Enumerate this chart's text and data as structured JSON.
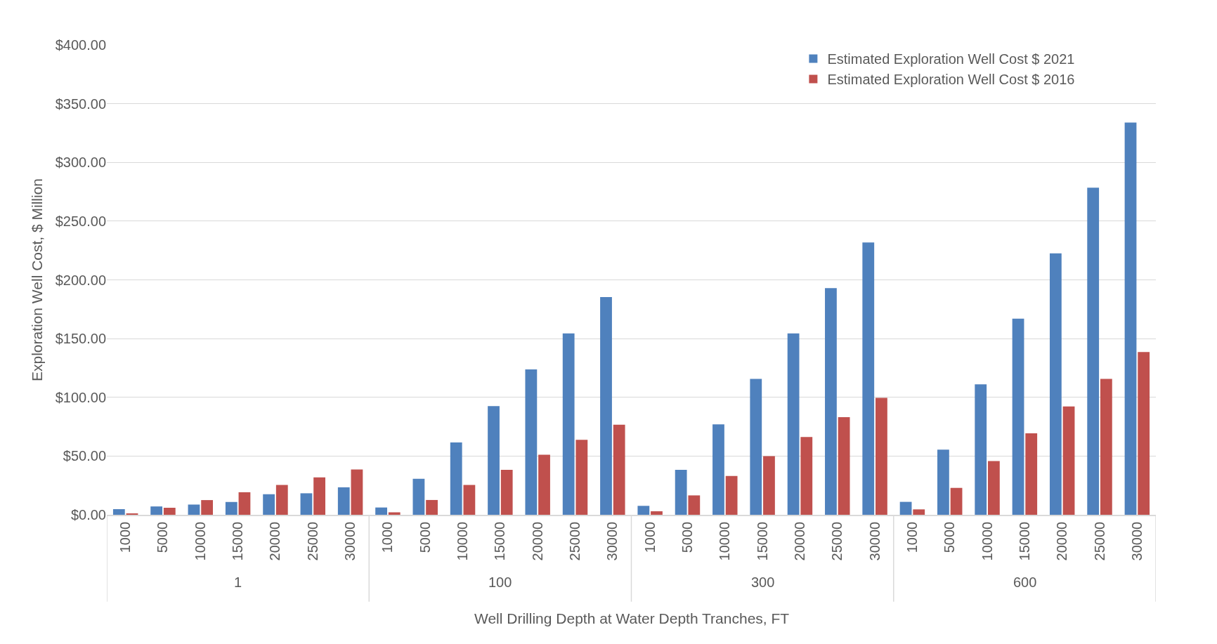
{
  "chart_data": {
    "type": "bar",
    "xlabel": "Well Drilling Depth at Water Depth Tranches, FT",
    "ylabel": "Exploration Well Cost, $ Million",
    "categories": [
      "1000",
      "5000",
      "10000",
      "15000",
      "20000",
      "25000",
      "30000",
      "1000",
      "5000",
      "10000",
      "15000",
      "20000",
      "25000",
      "30000",
      "1000",
      "5000",
      "10000",
      "15000",
      "20000",
      "25000",
      "30000",
      "1000",
      "5000",
      "10000",
      "15000",
      "20000",
      "25000",
      "30000"
    ],
    "annotations": [
      "1",
      "100",
      "300",
      "600"
    ],
    "series": [
      {
        "name": "Estimated Exploration Well Cost $ 2021",
        "color": "#4f81bd",
        "values": [
          4.8,
          7.1,
          8.7,
          10.9,
          17.5,
          18.3,
          23.4,
          6.2,
          30.7,
          61.6,
          92.5,
          123.7,
          154.4,
          185.3,
          7.6,
          38.2,
          77.0,
          115.7,
          154.4,
          192.9,
          231.8,
          11.0,
          55.4,
          111.1,
          167.0,
          222.6,
          278.5,
          333.9
        ]
      },
      {
        "name": "Estimated Exploration Well Cost $ 2016",
        "color": "#c0504d",
        "values": [
          0.8,
          6.0,
          12.5,
          19.2,
          25.4,
          31.9,
          38.5,
          2.1,
          12.6,
          25.4,
          38.2,
          51.1,
          63.9,
          76.7,
          3.0,
          16.5,
          33.0,
          49.9,
          66.2,
          83.1,
          99.6,
          4.6,
          22.9,
          45.8,
          69.4,
          92.3,
          115.7,
          138.6
        ]
      }
    ],
    "ylim": [
      0,
      400
    ],
    "yticks": [
      {
        "value": 0,
        "label": "$0.00"
      },
      {
        "value": 50,
        "label": "$50.00"
      },
      {
        "value": 100,
        "label": "$100.00"
      },
      {
        "value": 150,
        "label": "$150.00"
      },
      {
        "value": 200,
        "label": "$200.00"
      },
      {
        "value": 250,
        "label": "$250.00"
      },
      {
        "value": 300,
        "label": "$300.00"
      },
      {
        "value": 350,
        "label": "$350.00"
      },
      {
        "value": 400,
        "label": "$400.00"
      }
    ],
    "grid": "y",
    "legend": "top right"
  }
}
